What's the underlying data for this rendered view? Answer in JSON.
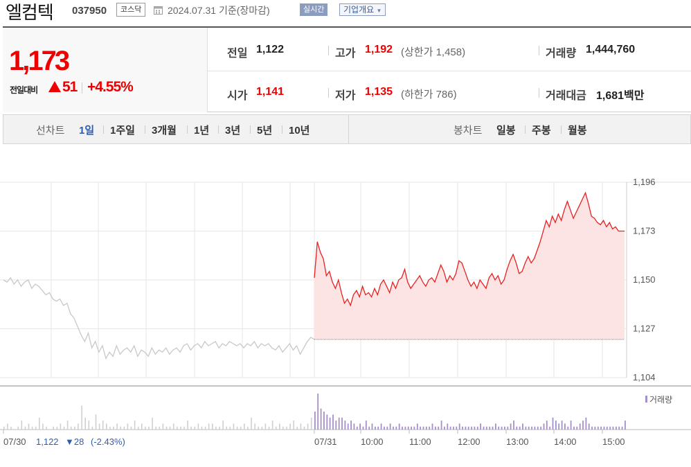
{
  "header": {
    "company_name": "엘컴텍",
    "stock_code": "037950",
    "market": "코스닥",
    "date_text": "2024.07.31  기준(장마감)",
    "realtime_label": "실시간",
    "overview_label": "기업개요",
    "icons": {
      "date": "calendar-icon",
      "overview": "chevron-down-icon"
    }
  },
  "summary": {
    "current_price": "1,173",
    "change_label": "전일대비",
    "change_icon": "triangle-up-icon",
    "change_amount": "51",
    "change_rate": "+4.55%",
    "prev_close_label": "전일",
    "prev_close": "1,122",
    "high_label": "고가",
    "high": "1,192",
    "upper_limit": "(상한가 1,458)",
    "volume_label": "거래량",
    "volume": "1,444,760",
    "open_label": "시가",
    "open": "1,141",
    "low_label": "저가",
    "low": "1,135",
    "lower_limit": "(하한가 786)",
    "amount_label": "거래대금",
    "amount": "1,681",
    "amount_unit": "백만"
  },
  "period_bar": {
    "line_label": "선차트",
    "line_items": [
      "1일",
      "1주일",
      "3개월",
      "1년",
      "3년",
      "5년",
      "10년"
    ],
    "line_active": "1일",
    "candle_label": "봉차트",
    "candle_items": [
      "일봉",
      "주봉",
      "월봉"
    ]
  },
  "colors": {
    "up": "#e00000",
    "down": "#2f5cb3",
    "prev_day_line": "#c8c8c8",
    "volume": "#a58fca",
    "fill": "#fde4e4"
  },
  "chart_data": {
    "type": "line",
    "yticks": [
      "1,196",
      "1,173",
      "1,150",
      "1,127",
      "1,104"
    ],
    "ylim": [
      1104,
      1196
    ],
    "prev_close": 1122,
    "series": [
      {
        "day": "07/30",
        "values": [
          1150,
          1149,
          1151,
          1148,
          1150,
          1147,
          1149,
          1150,
          1146,
          1148,
          1147,
          1145,
          1143,
          1144,
          1141,
          1140,
          1141,
          1138,
          1139,
          1134,
          1132,
          1128,
          1124,
          1121,
          1125,
          1118,
          1121,
          1116,
          1119,
          1113,
          1116,
          1114,
          1119,
          1115,
          1117,
          1118,
          1116,
          1119,
          1114,
          1117,
          1116,
          1114,
          1118,
          1115,
          1117,
          1116,
          1118,
          1115,
          1117,
          1118,
          1116,
          1119,
          1120,
          1117,
          1119,
          1120,
          1118,
          1121,
          1119,
          1120,
          1121,
          1118,
          1120,
          1119,
          1121,
          1120,
          1119,
          1120,
          1118,
          1120,
          1119,
          1121,
          1118,
          1120,
          1119,
          1120,
          1118,
          1117,
          1119,
          1116,
          1118,
          1120,
          1117,
          1119,
          1115,
          1118,
          1121,
          1123,
          1122
        ]
      },
      {
        "day": "07/31",
        "values": [
          1151,
          1168,
          1163,
          1160,
          1152,
          1154,
          1149,
          1146,
          1150,
          1144,
          1139,
          1141,
          1138,
          1143,
          1145,
          1142,
          1147,
          1143,
          1144,
          1142,
          1146,
          1143,
          1148,
          1150,
          1147,
          1144,
          1149,
          1146,
          1150,
          1151,
          1155,
          1149,
          1146,
          1148,
          1150,
          1152,
          1149,
          1147,
          1150,
          1151,
          1149,
          1153,
          1157,
          1154,
          1149,
          1152,
          1150,
          1153,
          1159,
          1158,
          1154,
          1150,
          1147,
          1149,
          1146,
          1150,
          1148,
          1146,
          1151,
          1153,
          1150,
          1152,
          1148,
          1150,
          1155,
          1159,
          1162,
          1158,
          1153,
          1154,
          1158,
          1161,
          1158,
          1160,
          1164,
          1168,
          1173,
          1178,
          1175,
          1180,
          1177,
          1181,
          1178,
          1183,
          1187,
          1183,
          1179,
          1182,
          1185,
          1188,
          1191,
          1186,
          1180,
          1179,
          1177,
          1176,
          1178,
          1175,
          1177,
          1174,
          1175,
          1173,
          1173,
          1173
        ]
      }
    ],
    "x_labels": [
      "07/30",
      "07/31",
      "10:00",
      "11:00",
      "12:00",
      "13:00",
      "14:00",
      "15:00"
    ],
    "footer_day": "07/30",
    "footer_price": "1,122",
    "footer_change": "▼28",
    "footer_rate": "(-2.43%)",
    "volume_label": "거래량",
    "volume_prev": [
      1,
      2,
      1,
      0,
      1,
      3,
      1,
      2,
      1,
      1,
      4,
      2,
      1,
      0,
      1,
      1,
      2,
      1,
      3,
      1,
      1,
      2,
      8,
      4,
      3,
      1,
      5,
      2,
      3,
      2,
      1,
      1,
      2,
      1,
      1,
      2,
      1,
      3,
      1,
      2,
      1,
      1,
      4,
      1,
      1,
      2,
      1,
      1,
      2,
      1,
      1,
      1,
      3,
      1,
      1,
      2,
      1,
      1,
      2,
      2,
      1,
      1,
      3,
      1,
      1,
      2,
      1,
      1,
      2,
      1,
      4,
      2,
      1,
      1,
      2,
      1,
      3,
      1,
      2,
      1,
      1,
      2,
      3,
      1,
      2,
      1,
      2,
      4,
      2
    ],
    "volume_today": [
      6,
      12,
      7,
      6,
      5,
      4,
      5,
      3,
      4,
      4,
      3,
      2,
      3,
      2,
      1,
      2,
      1,
      3,
      1,
      2,
      1,
      1,
      2,
      1,
      1,
      2,
      1,
      1,
      2,
      1,
      1,
      1,
      1,
      1,
      2,
      1,
      1,
      1,
      1,
      2,
      1,
      1,
      3,
      1,
      2,
      1,
      1,
      1,
      2,
      1,
      1,
      1,
      1,
      1,
      1,
      2,
      1,
      1,
      1,
      1,
      2,
      1,
      1,
      1,
      1,
      2,
      3,
      1,
      1,
      2,
      1,
      1,
      1,
      1,
      1,
      1,
      2,
      3,
      1,
      4,
      3,
      2,
      3,
      2,
      1,
      3,
      1,
      1,
      2,
      3,
      4,
      2,
      1,
      1,
      1,
      1,
      1,
      1,
      1,
      1,
      1,
      1,
      1,
      3
    ]
  }
}
